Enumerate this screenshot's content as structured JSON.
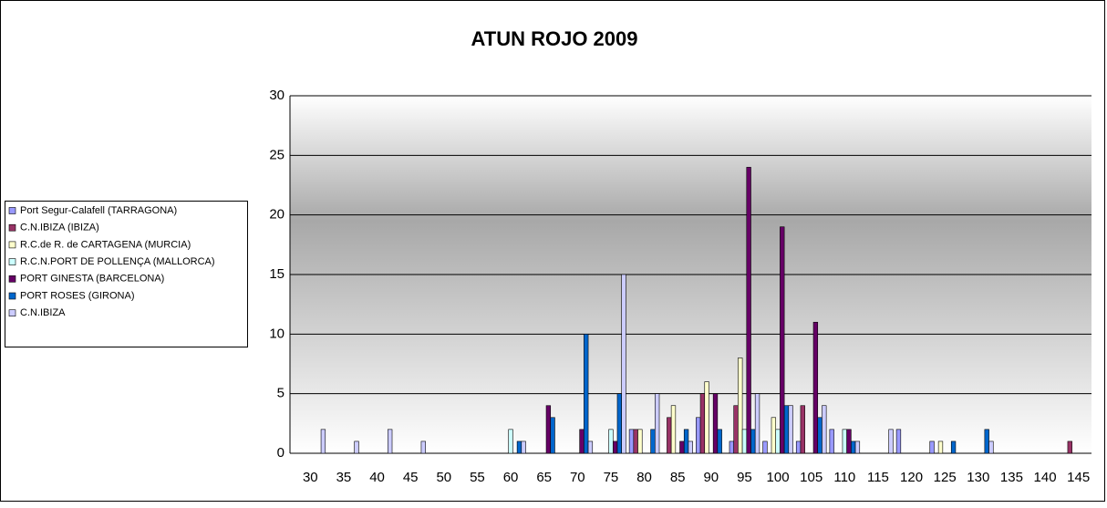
{
  "chart_data": {
    "type": "bar",
    "title": "ATUN ROJO 2009",
    "categories": [
      "30",
      "35",
      "40",
      "45",
      "50",
      "55",
      "60",
      "65",
      "70",
      "75",
      "80",
      "85",
      "90",
      "95",
      "100",
      "105",
      "110",
      "115",
      "120",
      "125",
      "130",
      "135",
      "140",
      "145"
    ],
    "series": [
      {
        "name": "Port Segur-Calafell (TARRAGONA)",
        "color": "#9999ff",
        "values": [
          null,
          null,
          null,
          null,
          null,
          null,
          null,
          null,
          null,
          null,
          2,
          null,
          3,
          1,
          1,
          1,
          2,
          null,
          2,
          1,
          null,
          null,
          null,
          null
        ]
      },
      {
        "name": "C.N.IBIZA (IBIZA)",
        "color": "#993366",
        "values": [
          null,
          null,
          null,
          null,
          null,
          null,
          null,
          null,
          null,
          null,
          2,
          3,
          5,
          4,
          null,
          4,
          null,
          null,
          null,
          null,
          null,
          null,
          null,
          1
        ]
      },
      {
        "name": "R.C.de R. de CARTAGENA (MURCIA)",
        "color": "#ffffcc",
        "values": [
          null,
          null,
          null,
          null,
          null,
          null,
          null,
          null,
          null,
          null,
          2,
          4,
          6,
          8,
          3,
          null,
          null,
          null,
          null,
          1,
          null,
          null,
          null,
          null
        ]
      },
      {
        "name": "R.C.N.PORT DE POLLENÇA (MALLORCA)",
        "color": "#ccffff",
        "values": [
          null,
          null,
          null,
          null,
          null,
          null,
          2,
          null,
          null,
          2,
          null,
          null,
          null,
          2,
          2,
          null,
          2,
          null,
          null,
          null,
          null,
          null,
          null,
          null
        ]
      },
      {
        "name": "PORT GINESTA (BARCELONA)",
        "color": "#660066",
        "values": [
          null,
          null,
          null,
          null,
          null,
          null,
          null,
          4,
          2,
          1,
          null,
          1,
          5,
          24,
          19,
          11,
          2,
          null,
          null,
          null,
          null,
          null,
          null,
          null
        ]
      },
      {
        "name": "PORT ROSES (GIRONA)",
        "color": "#0066cc",
        "values": [
          null,
          null,
          null,
          null,
          null,
          null,
          1,
          3,
          10,
          5,
          2,
          2,
          2,
          2,
          4,
          3,
          1,
          null,
          null,
          1,
          2,
          null,
          null,
          null
        ]
      },
      {
        "name": "C.N.IBIZA",
        "color": "#ccccff",
        "values": [
          2,
          1,
          2,
          1,
          null,
          null,
          1,
          null,
          1,
          15,
          5,
          1,
          null,
          5,
          4,
          4,
          1,
          2,
          null,
          null,
          1,
          null,
          null,
          null
        ]
      }
    ],
    "ylim": [
      0,
      30
    ],
    "yticks": [
      0,
      5,
      10,
      15,
      20,
      25,
      30
    ],
    "grid": true,
    "legend": "left"
  }
}
